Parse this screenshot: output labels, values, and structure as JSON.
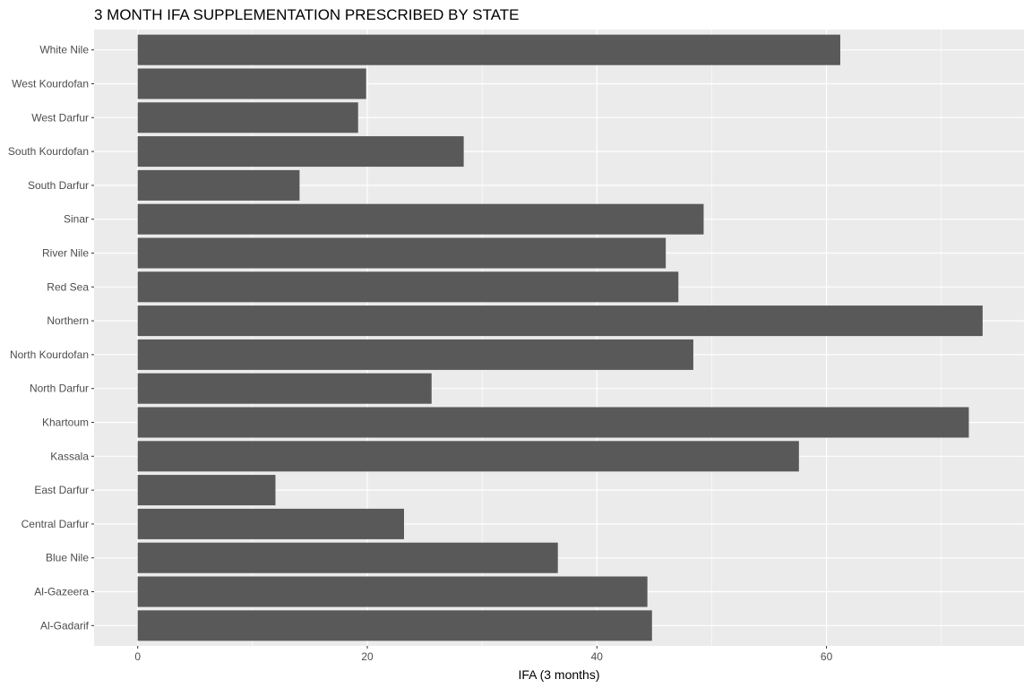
{
  "chart_data": {
    "type": "bar",
    "orientation": "horizontal",
    "title": "3 MONTH IFA SUPPLEMENTATION PRESCRIBED BY STATE",
    "xlabel": "IFA (3 months)",
    "ylabel": "",
    "xlim": [
      -3.8,
      77.2
    ],
    "x_ticks": [
      0,
      20,
      40,
      60
    ],
    "x_tick_labels": [
      "0",
      "20",
      "40",
      "60"
    ],
    "grid": true,
    "legend": "none",
    "colors": {
      "bar": "#595959",
      "panel": "#EBEBEB",
      "grid": "#FFFFFF"
    },
    "categories": [
      "Al-Gadarif",
      "Al-Gazeera",
      "Blue Nile",
      "Central Darfur",
      "East Darfur",
      "Kassala",
      "Khartoum",
      "North Darfur",
      "North Kourdofan",
      "Northern",
      "Red Sea",
      "River Nile",
      "Sinar",
      "South Darfur",
      "South Kourdofan",
      "West Darfur",
      "West Kourdofan",
      "White Nile"
    ],
    "values": [
      44.8,
      44.4,
      36.6,
      23.2,
      12.0,
      57.6,
      72.4,
      25.6,
      48.4,
      73.6,
      47.1,
      46.0,
      49.3,
      14.1,
      28.4,
      19.2,
      19.9,
      61.2
    ]
  }
}
